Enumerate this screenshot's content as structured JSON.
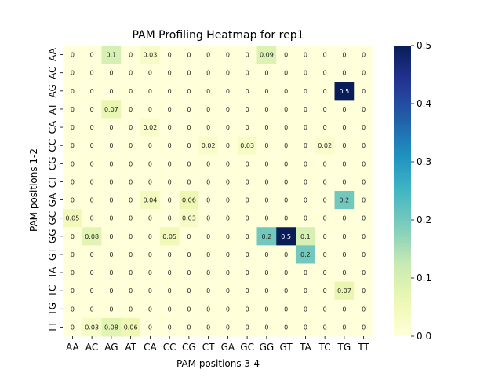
{
  "chart_data": {
    "type": "heatmap",
    "title": "PAM Profiling Heatmap for rep1",
    "xlabel": "PAM positions 3-4",
    "ylabel": "PAM positions 1-2",
    "x_categories": [
      "AA",
      "AC",
      "AG",
      "AT",
      "CA",
      "CC",
      "CG",
      "CT",
      "GA",
      "GC",
      "GG",
      "GT",
      "TA",
      "TC",
      "TG",
      "TT"
    ],
    "y_categories": [
      "AA",
      "AC",
      "AG",
      "AT",
      "CA",
      "CC",
      "CG",
      "CT",
      "GA",
      "GC",
      "GG",
      "GT",
      "TA",
      "TC",
      "TG",
      "TT"
    ],
    "values": [
      [
        0,
        0,
        0.1,
        0,
        0.03,
        0,
        0,
        0,
        0,
        0,
        0.09,
        0,
        0,
        0,
        0,
        0
      ],
      [
        0,
        0,
        0,
        0,
        0,
        0,
        0,
        0,
        0,
        0,
        0,
        0,
        0,
        0,
        0,
        0
      ],
      [
        0,
        0,
        0,
        0,
        0,
        0,
        0,
        0,
        0,
        0,
        0,
        0,
        0,
        0,
        0.5,
        0
      ],
      [
        0,
        0,
        0.07,
        0,
        0,
        0,
        0,
        0,
        0,
        0,
        0,
        0,
        0,
        0,
        0,
        0
      ],
      [
        0,
        0,
        0,
        0,
        0.02,
        0,
        0,
        0,
        0,
        0,
        0,
        0,
        0,
        0,
        0,
        0
      ],
      [
        0,
        0,
        0,
        0,
        0,
        0,
        0,
        0.02,
        0,
        0.03,
        0,
        0,
        0,
        0.02,
        0,
        0
      ],
      [
        0,
        0,
        0,
        0,
        0,
        0,
        0,
        0,
        0,
        0,
        0,
        0,
        0,
        0,
        0,
        0
      ],
      [
        0,
        0,
        0,
        0,
        0,
        0,
        0,
        0,
        0,
        0,
        0,
        0,
        0,
        0,
        0,
        0
      ],
      [
        0,
        0,
        0,
        0,
        0.04,
        0,
        0.06,
        0,
        0,
        0,
        0,
        0,
        0,
        0,
        0.2,
        0
      ],
      [
        0.05,
        0,
        0,
        0,
        0,
        0,
        0.03,
        0,
        0,
        0,
        0,
        0,
        0,
        0,
        0,
        0
      ],
      [
        0,
        0.08,
        0,
        0,
        0,
        0.05,
        0,
        0,
        0,
        0,
        0.2,
        0.5,
        0.1,
        0,
        0,
        0
      ],
      [
        0,
        0,
        0,
        0,
        0,
        0,
        0,
        0,
        0,
        0,
        0,
        0,
        0.2,
        0,
        0,
        0
      ],
      [
        0,
        0,
        0,
        0,
        0,
        0,
        0,
        0,
        0,
        0,
        0,
        0,
        0,
        0,
        0,
        0
      ],
      [
        0,
        0,
        0,
        0,
        0,
        0,
        0,
        0,
        0,
        0,
        0,
        0,
        0,
        0,
        0.07,
        0
      ],
      [
        0,
        0,
        0,
        0,
        0,
        0,
        0,
        0,
        0,
        0,
        0,
        0,
        0,
        0,
        0,
        0
      ],
      [
        0,
        0.03,
        0.08,
        0.06,
        0,
        0,
        0,
        0,
        0,
        0,
        0,
        0,
        0,
        0,
        0,
        0
      ]
    ],
    "colorbar": {
      "range": [
        0.0,
        0.5
      ],
      "ticks": [
        0.0,
        0.1,
        0.2,
        0.3,
        0.4,
        0.5
      ],
      "tick_labels": [
        "0.0",
        "0.1",
        "0.2",
        "0.3",
        "0.4",
        "0.5"
      ],
      "colormap": "YlGnBu"
    }
  }
}
